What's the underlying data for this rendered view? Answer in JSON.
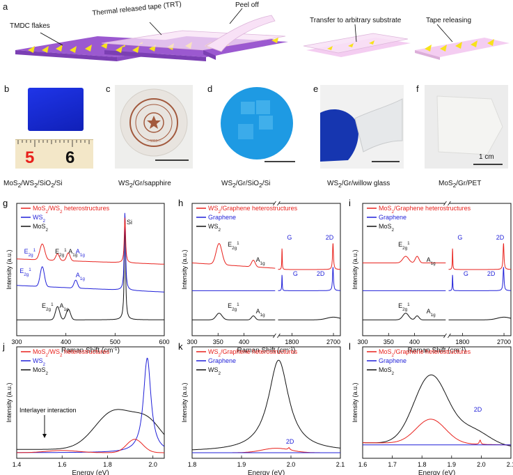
{
  "panel_a": {
    "letter": "a",
    "steps": [
      "TMDC flakes",
      "Thermal released tape (TRT)",
      "Peel off",
      "Transfer to arbitrary substrate",
      "Tape releasing"
    ]
  },
  "photos": [
    {
      "letter": "b",
      "caption_parts": [
        "MoS",
        "2",
        "/WS",
        "2",
        "/SiO",
        "2",
        "/Si"
      ],
      "ruler": [
        "5",
        "6"
      ]
    },
    {
      "letter": "c",
      "caption_parts": [
        "WS",
        "2",
        "/Gr/sapphire"
      ],
      "seal_text": "—1911—"
    },
    {
      "letter": "d",
      "caption_parts": [
        "WS",
        "2",
        "/Gr/SiO",
        "2",
        "/Si"
      ]
    },
    {
      "letter": "e",
      "caption_parts": [
        "WS",
        "2",
        "/Gr/willow glass"
      ]
    },
    {
      "letter": "f",
      "caption_parts": [
        "MoS",
        "2",
        "/Gr/PET"
      ],
      "scale": "1 cm"
    }
  ],
  "colors": {
    "red": "#e8211c",
    "blue": "#1f1fd8",
    "black": "#111111",
    "purple": "#9b59d0",
    "pink": "#f2c4ee",
    "yellow": "#f7e21b"
  },
  "chart_data": [
    {
      "id": "g",
      "type": "line",
      "xlabel": "Raman Shift (cm",
      "xlabel_sup": "-1",
      "xlabel_end": ")",
      "ylabel": "Intensity (a.u.)",
      "xlim": [
        300,
        600
      ],
      "xticks": [
        300,
        400,
        500,
        600
      ],
      "legend": [
        {
          "name": [
            "MoS",
            "2",
            "/WS",
            "2",
            " heterostructures"
          ],
          "color": "red"
        },
        {
          "name": [
            "WS",
            "2"
          ],
          "color": "blue"
        },
        {
          "name": [
            "MoS",
            "2"
          ],
          "color": "black"
        }
      ],
      "annotations": [
        {
          "text": "Si",
          "x": 525,
          "y": 0.98
        },
        {
          "text": "E",
          "sub": "2g",
          "sup": "1",
          "x": 345,
          "y": 0.63,
          "color": "blue"
        },
        {
          "text": "E",
          "sub": "2g",
          "sup": "1",
          "x": 383,
          "y": 0.62
        },
        {
          "text": "A",
          "sub": "1g",
          "x": 405,
          "y": 0.61
        },
        {
          "text": "A",
          "sub": "1g",
          "x": 420,
          "y": 0.61,
          "color": "blue"
        },
        {
          "text": "E",
          "sub": "2g",
          "sup": "1",
          "x": 330,
          "y": 0.47,
          "color": "blue"
        },
        {
          "text": "A",
          "sub": "1g",
          "x": 420,
          "y": 0.4,
          "color": "blue"
        },
        {
          "text": "E",
          "sub": "2g",
          "sup": "1",
          "x": 373,
          "y": 0.22
        },
        {
          "text": "A",
          "sub": "1g",
          "x": 403,
          "y": 0.21
        }
      ]
    },
    {
      "id": "h",
      "type": "line",
      "xlabel": "Raman Shift (cm",
      "xlabel_sup": "-1",
      "xlabel_end": ")",
      "ylabel": "Intensity (a.u.)",
      "xticks": [
        "300",
        "350",
        "400",
        "1800",
        "2700"
      ],
      "legend": [
        {
          "name": [
            "WS",
            "2",
            "/Graphene heterostructures"
          ],
          "color": "red"
        },
        {
          "name": [
            "Graphene"
          ],
          "color": "blue"
        },
        {
          "name": [
            "WS",
            "2"
          ],
          "color": "black"
        }
      ],
      "annotations": [
        {
          "text": "E",
          "sub": "2g",
          "sup": "1"
        },
        {
          "text": "A",
          "sub": "1g"
        },
        {
          "text": "G"
        },
        {
          "text": "2D"
        },
        {
          "text": "G"
        },
        {
          "text": "2D"
        },
        {
          "text": "E",
          "sub": "2g",
          "sup": "1"
        },
        {
          "text": "A",
          "sub": "1g"
        }
      ]
    },
    {
      "id": "i",
      "type": "line",
      "xlabel": "Raman Shift (cm",
      "xlabel_sup": "-1",
      "xlabel_end": ")",
      "ylabel": "Intensity (a.u.)",
      "xticks": [
        "300",
        "350",
        "400",
        "1800",
        "2700"
      ],
      "legend": [
        {
          "name": [
            "MoS",
            "2",
            "/Graphene heterostructures"
          ],
          "color": "red"
        },
        {
          "name": [
            "Graphene"
          ],
          "color": "blue"
        },
        {
          "name": [
            "MoS",
            "2"
          ],
          "color": "black"
        }
      ],
      "annotations": [
        {
          "text": "E",
          "sub": "2g",
          "sup": "1"
        },
        {
          "text": "A",
          "sub": "1g"
        },
        {
          "text": "G"
        },
        {
          "text": "2D"
        },
        {
          "text": "G"
        },
        {
          "text": "2D"
        },
        {
          "text": "E",
          "sub": "2g",
          "sup": "1"
        },
        {
          "text": "A",
          "sub": "1g"
        }
      ]
    },
    {
      "id": "j",
      "type": "line",
      "xlabel": "Energy (eV)",
      "ylabel": "Intensity (a.u.)",
      "xlim": [
        1.4,
        2.05
      ],
      "xticks": [
        1.4,
        1.6,
        1.8,
        2.0
      ],
      "legend": [
        {
          "name": [
            "MoS",
            "2",
            "/WS",
            "2",
            " heterostructures"
          ],
          "color": "red"
        },
        {
          "name": [
            "WS",
            "2"
          ],
          "color": "blue"
        },
        {
          "name": [
            "MoS",
            "2"
          ],
          "color": "black"
        }
      ],
      "annotations": [
        {
          "text": "Interlayer interaction"
        }
      ]
    },
    {
      "id": "k",
      "type": "line",
      "xlabel": "Energy (eV)",
      "ylabel": "Intensity (a.u.)",
      "xlim": [
        1.8,
        2.1
      ],
      "xticks": [
        1.8,
        1.9,
        2.0,
        2.1
      ],
      "legend": [
        {
          "name": [
            "WS",
            "2",
            "/Graphene heterostructures"
          ],
          "color": "red"
        },
        {
          "name": [
            "Graphene"
          ],
          "color": "blue"
        },
        {
          "name": [
            "WS",
            "2"
          ],
          "color": "black"
        }
      ],
      "annotations": [
        {
          "text": "2D"
        }
      ]
    },
    {
      "id": "l",
      "type": "line",
      "xlabel": "Energy (eV)",
      "ylabel": "Intensity (a.u.)",
      "xlim": [
        1.6,
        2.1
      ],
      "xticks": [
        1.6,
        1.7,
        1.8,
        1.9,
        2.0,
        2.1
      ],
      "legend": [
        {
          "name": [
            "MoS",
            "2",
            "/Graphene heterostructures"
          ],
          "color": "red"
        },
        {
          "name": [
            "Graphene"
          ],
          "color": "blue"
        },
        {
          "name": [
            "MoS",
            "2"
          ],
          "color": "black"
        }
      ],
      "annotations": [
        {
          "text": "2D"
        }
      ]
    }
  ]
}
